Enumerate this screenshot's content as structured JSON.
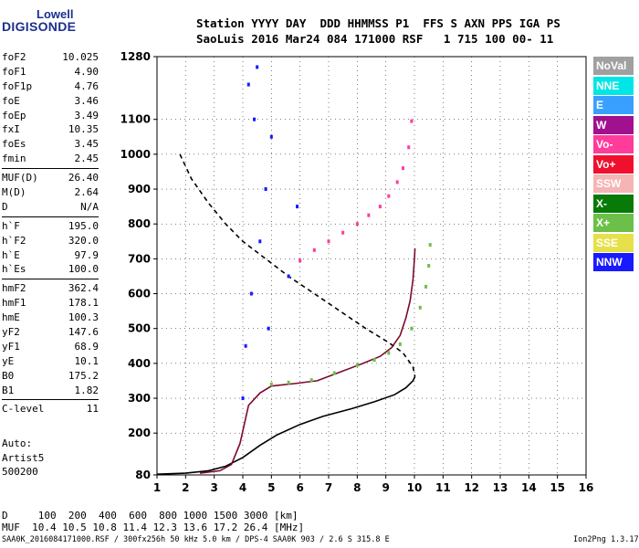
{
  "logo": {
    "line1": "Lowell",
    "line2": "DIGISONDE"
  },
  "header": {
    "line1": "Station YYYY DAY  DDD HHMMSS P1  FFS S AXN PPS IGA PS",
    "line2": "SaoLuis 2016 Mar24 084 171000 RSF   1 715 100 00- 11"
  },
  "params_group1": [
    {
      "label": "foF2",
      "value": "10.025"
    },
    {
      "label": "foF1",
      "value": "4.90"
    },
    {
      "label": "foF1p",
      "value": "4.76"
    },
    {
      "label": "foE",
      "value": "3.46"
    },
    {
      "label": "foEp",
      "value": "3.49"
    },
    {
      "label": "fxI",
      "value": "10.35"
    },
    {
      "label": "foEs",
      "value": "3.45"
    },
    {
      "label": "fmin",
      "value": "2.45"
    }
  ],
  "params_group2": [
    {
      "label": "MUF(D)",
      "value": "26.40"
    },
    {
      "label": "M(D)",
      "value": "2.64"
    },
    {
      "label": "D",
      "value": "N/A"
    }
  ],
  "params_group3": [
    {
      "label": "h`F",
      "value": "195.0"
    },
    {
      "label": "h`F2",
      "value": "320.0"
    },
    {
      "label": "h`E",
      "value": "97.9"
    },
    {
      "label": "h`Es",
      "value": "100.0"
    }
  ],
  "params_group4": [
    {
      "label": "hmF2",
      "value": "362.4"
    },
    {
      "label": "hmF1",
      "value": "178.1"
    },
    {
      "label": "hmE",
      "value": "100.3"
    },
    {
      "label": "yF2",
      "value": "147.6"
    },
    {
      "label": "yF1",
      "value": "68.9"
    },
    {
      "label": "yE",
      "value": "10.1"
    },
    {
      "label": "B0",
      "value": "175.2"
    },
    {
      "label": "B1",
      "value": "1.82"
    }
  ],
  "params_group5": [
    {
      "label": "C-level",
      "value": "11"
    }
  ],
  "auto": {
    "line1": "Auto:",
    "line2": "Artist5",
    "line3": "500200"
  },
  "legend": [
    {
      "label": "NoVal",
      "color": "#a0a0a0"
    },
    {
      "label": "NNE",
      "color": "#00e6e6"
    },
    {
      "label": "E",
      "color": "#3aa0ff"
    },
    {
      "label": "W",
      "color": "#a0108f"
    },
    {
      "label": "Vo-",
      "color": "#ff3c9a"
    },
    {
      "label": "Vo+",
      "color": "#f0102e"
    },
    {
      "label": "SSW",
      "color": "#f5b5b5"
    },
    {
      "label": "X-",
      "color": "#087a08"
    },
    {
      "label": "X+",
      "color": "#6cc04a"
    },
    {
      "label": "SSE",
      "color": "#e6e04a"
    },
    {
      "label": "NNW",
      "color": "#1a1aff"
    }
  ],
  "muf_table": {
    "line1": "D     100  200  400  600  800 1000 1500 3000 [km]",
    "line2": "MUF  10.4 10.5 10.8 11.4 12.3 13.6 17.2 26.4 [MHz]"
  },
  "footer": "SAA0K_2016084171000.RSF / 300fx256h 50 kHz 5.0 km / DPS-4 SAA0K 903 / 2.6 S 315.8 E",
  "version": "Ion2Png 1.3.17",
  "chart_data": {
    "type": "scatter",
    "xlabel": "",
    "ylabel": "",
    "xlim": [
      1,
      16
    ],
    "ylim": [
      80,
      1280
    ],
    "x_ticks": [
      "1",
      "2",
      "3",
      "4",
      "5",
      "6",
      "7",
      "8",
      "9",
      "10",
      "11",
      "12",
      "13",
      "14",
      "15",
      "16"
    ],
    "y_ticks": [
      "1280",
      "1100",
      "1000",
      "900",
      "800",
      "700",
      "600",
      "500",
      "400",
      "300",
      "200",
      "80"
    ],
    "y_tick_values": [
      1280,
      1100,
      1000,
      900,
      800,
      700,
      600,
      500,
      400,
      300,
      200,
      80
    ],
    "grid": true,
    "series": [
      {
        "type": "line",
        "style": "dashed",
        "color": "#000000",
        "x": [
          1.8,
          2.2,
          2.8,
          3.4,
          4.0,
          4.8,
          5.6,
          6.5,
          7.4,
          8.3,
          9.1,
          9.6,
          9.95,
          10.02
        ],
        "y": [
          1000,
          930,
          860,
          800,
          750,
          700,
          650,
          600,
          550,
          500,
          460,
          430,
          390,
          362
        ]
      },
      {
        "type": "line",
        "style": "solid",
        "color": "#000000",
        "x": [
          1.0,
          2.0,
          2.8,
          3.4,
          4.0,
          4.6,
          5.2,
          6.0,
          6.8,
          7.8,
          8.6,
          9.3,
          9.7,
          9.95,
          10.02
        ],
        "y": [
          82,
          85,
          92,
          105,
          130,
          165,
          195,
          225,
          248,
          270,
          290,
          310,
          330,
          350,
          362
        ]
      },
      {
        "type": "line",
        "style": "solid",
        "color": "#7a0a2a",
        "x": [
          2.5,
          3.2,
          3.6,
          3.9,
          4.2,
          4.6,
          5.0,
          5.8,
          6.6,
          7.4,
          8.2,
          8.8,
          9.2,
          9.5,
          9.7,
          9.85,
          9.95,
          10.0,
          10.02
        ],
        "y": [
          85,
          92,
          110,
          170,
          280,
          315,
          335,
          342,
          350,
          375,
          400,
          420,
          445,
          480,
          530,
          580,
          640,
          700,
          730
        ]
      },
      {
        "type": "points",
        "name": "X+",
        "color": "#6cc04a",
        "x": [
          5.0,
          5.6,
          6.4,
          7.2,
          8.0,
          8.6,
          9.1,
          9.5,
          9.9,
          10.2,
          10.4,
          10.5,
          10.55
        ],
        "y": [
          340,
          345,
          352,
          372,
          395,
          410,
          430,
          455,
          500,
          560,
          620,
          680,
          740
        ]
      },
      {
        "type": "points",
        "name": "Vo-",
        "color": "#ff3c9a",
        "x": [
          6.0,
          6.5,
          7.0,
          7.5,
          8.0,
          8.4,
          8.8,
          9.1,
          9.4,
          9.6,
          9.8,
          9.9
        ],
        "y": [
          695,
          725,
          750,
          775,
          800,
          825,
          850,
          880,
          920,
          960,
          1020,
          1095
        ]
      },
      {
        "type": "points",
        "name": "NNW",
        "color": "#1a1aff",
        "x": [
          4.0,
          4.1,
          4.3,
          4.6,
          4.8,
          5.0,
          4.2,
          4.5,
          4.9,
          5.6,
          5.9,
          4.4
        ],
        "y": [
          300,
          450,
          600,
          750,
          900,
          1050,
          1200,
          1250,
          500,
          650,
          850,
          1100
        ]
      }
    ]
  }
}
